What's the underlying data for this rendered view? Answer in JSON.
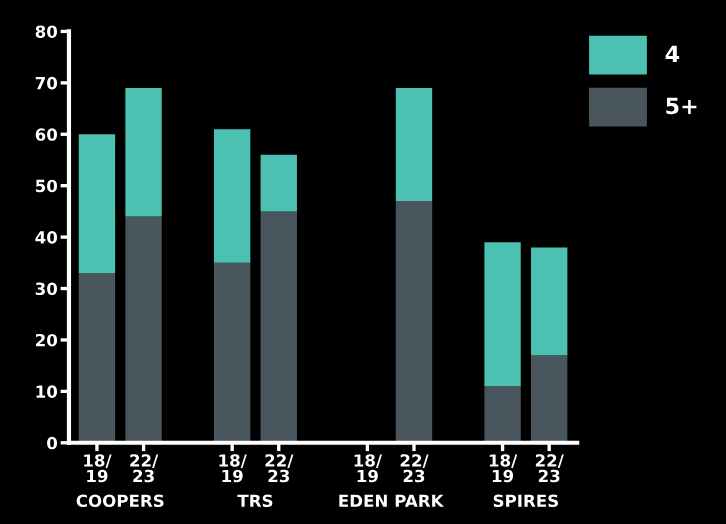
{
  "chart_data": {
    "type": "bar",
    "stacked": true,
    "categories": [
      "18/\n19",
      "22/\n23",
      "18/\n19",
      "22/\n23",
      "18/\n19",
      "22/\n23",
      "18/\n19",
      "22/\n23"
    ],
    "series": [
      {
        "name": "5+",
        "color": "#4a565e",
        "values": [
          33,
          44,
          35,
          45,
          null,
          47,
          11,
          17
        ]
      },
      {
        "name": "4",
        "color": "#4cc1b1",
        "values": [
          27,
          25,
          26,
          11,
          null,
          22,
          28,
          21
        ]
      }
    ],
    "annotations": [
      "COOPERS",
      "TRS",
      "EDEN PARK",
      "SPIRES"
    ],
    "ylim": [
      0,
      80
    ],
    "yticks": [
      0,
      10,
      20,
      30,
      40,
      50,
      60,
      70,
      80
    ],
    "grid": false,
    "legend": "top right"
  }
}
